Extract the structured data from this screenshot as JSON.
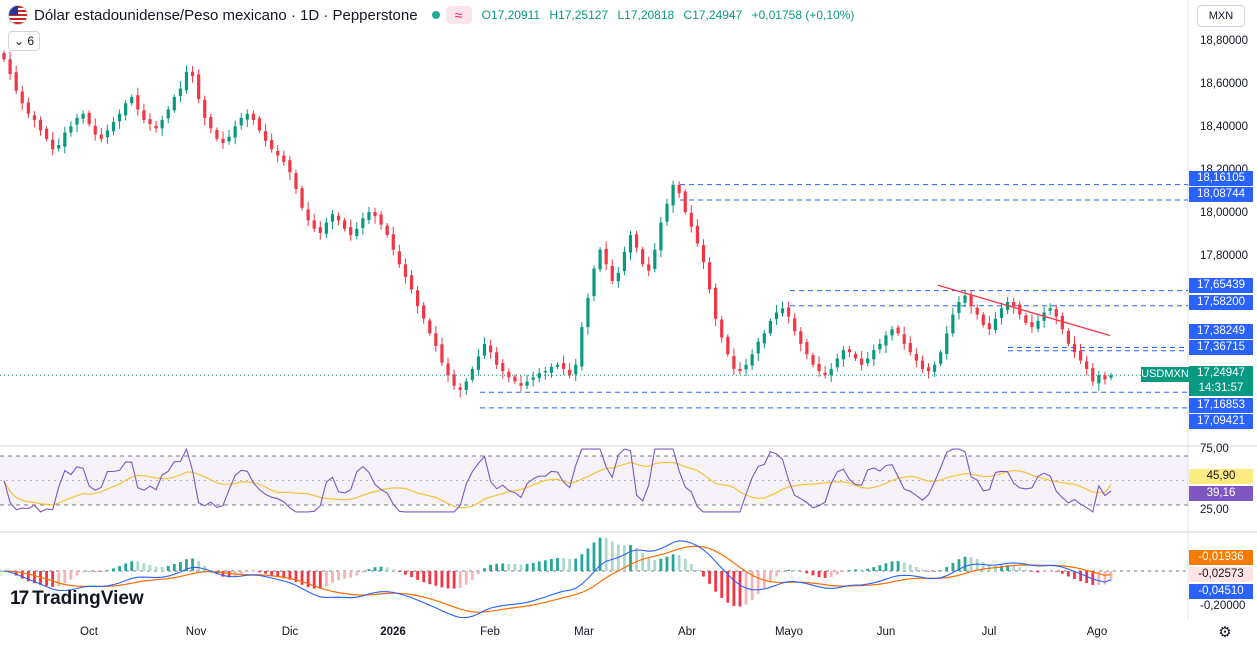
{
  "header": {
    "title": "Dólar estadounidense/Peso mexicano · 1D · Pepperstone",
    "ohlc": {
      "open": "O17,20911",
      "high": "H17,25127",
      "low": "L17,20818",
      "close": "C17,24947",
      "change": "+0,01758 (+0,10%)"
    },
    "indicator_badge": "≈",
    "collapse_label": "6",
    "currency": "MXN"
  },
  "colors": {
    "up": "#089981",
    "down": "#f23645",
    "levels": "#2962ff",
    "trend": "#f23645",
    "rsi": "#7e57c2",
    "rsi_ma": "#f7c33a",
    "macd": "#2962ff",
    "signal": "#ff6d00"
  },
  "icons": [
    "usd-mxn-flag-icon",
    "live-dot-icon",
    "indicator-wave-icon",
    "chevron-down-icon",
    "tradingview-logo-icon",
    "gear-icon"
  ],
  "price_axis": {
    "labels": [
      "18,80000",
      "18,60000",
      "18,40000",
      "18,20000",
      "18,00000",
      "17,80000"
    ]
  },
  "rsi_axis": {
    "labels": [
      "75,00",
      "25,00"
    ]
  },
  "macd_axis": {
    "labels": [
      "-0,20000"
    ]
  },
  "level_tags": [
    {
      "label": "18,16105",
      "value": 18.16105,
      "style": "blue"
    },
    {
      "label": "18,08744",
      "value": 18.08744,
      "style": "blue"
    },
    {
      "label": "17,65439",
      "value": 17.65439,
      "style": "blue"
    },
    {
      "label": "17,58200",
      "value": 17.582,
      "style": "blue"
    },
    {
      "label": "17,38249",
      "value": 17.38249,
      "style": "blue"
    },
    {
      "label": "17,36715",
      "value": 17.36715,
      "style": "blue"
    },
    {
      "label": "17,16853",
      "value": 17.16853,
      "style": "blue"
    },
    {
      "label": "17,09421",
      "value": 17.09421,
      "style": "blue"
    }
  ],
  "last_price": {
    "symbol": "USDMXN",
    "price": "17,24947",
    "countdown": "14:31:57"
  },
  "rsi_tags": {
    "ma": "45,90",
    "rsi": "39,16"
  },
  "macd_tags": {
    "signal": "-0,01936",
    "histogram": "-0,02573",
    "macd": "-0,04510"
  },
  "time_axis": {
    "labels": [
      "Oct",
      "Nov",
      "Dic",
      "2026",
      "Feb",
      "Mar",
      "Abr",
      "Mayo",
      "Jun",
      "Jul",
      "Ago"
    ]
  },
  "branding": {
    "logo": "TradingView"
  },
  "chart_data": {
    "type": "candlestick",
    "title": "Dólar estadounidense/Peso mexicano · 1D · Pepperstone",
    "symbol": "USDMXN",
    "interval": "1D",
    "price_range": [
      16.95,
      18.9
    ],
    "levels": [
      18.16105,
      18.08744,
      17.65439,
      17.582,
      17.38249,
      17.36715,
      17.16853,
      17.09421
    ],
    "trendline": {
      "from": {
        "date": "Jun",
        "price": 17.68
      },
      "to": {
        "date": "Ago",
        "price": 17.44
      }
    },
    "closes": [
      18.76,
      18.69,
      18.61,
      18.55,
      18.5,
      18.47,
      18.42,
      18.38,
      18.33,
      18.35,
      18.41,
      18.44,
      18.48,
      18.5,
      18.45,
      18.4,
      18.38,
      18.42,
      18.46,
      18.5,
      18.55,
      18.58,
      18.52,
      18.47,
      18.45,
      18.43,
      18.47,
      18.52,
      18.58,
      18.62,
      18.7,
      18.68,
      18.57,
      18.48,
      18.43,
      18.38,
      18.36,
      18.39,
      18.44,
      18.48,
      18.5,
      18.47,
      18.42,
      18.37,
      18.33,
      18.3,
      18.27,
      18.22,
      18.14,
      18.05,
      17.99,
      17.95,
      17.93,
      17.98,
      18.02,
      17.99,
      17.95,
      17.92,
      17.95,
      18.0,
      18.03,
      18.01,
      17.97,
      17.92,
      17.85,
      17.78,
      17.72,
      17.66,
      17.58,
      17.52,
      17.45,
      17.39,
      17.31,
      17.25,
      17.2,
      17.18,
      17.22,
      17.28,
      17.34,
      17.4,
      17.36,
      17.3,
      17.27,
      17.24,
      17.22,
      17.2,
      17.22,
      17.24,
      17.26,
      17.27,
      17.29,
      17.3,
      17.28,
      17.25,
      17.3,
      17.48,
      17.62,
      17.76,
      17.85,
      17.78,
      17.7,
      17.74,
      17.84,
      17.92,
      17.86,
      17.78,
      17.75,
      17.85,
      17.98,
      18.07,
      18.16,
      18.12,
      18.03,
      17.96,
      17.88,
      17.79,
      17.66,
      17.52,
      17.43,
      17.35,
      17.28,
      17.27,
      17.3,
      17.35,
      17.41,
      17.45,
      17.51,
      17.55,
      17.57,
      17.53,
      17.46,
      17.4,
      17.35,
      17.3,
      17.27,
      17.25,
      17.28,
      17.33,
      17.37,
      17.36,
      17.33,
      17.3,
      17.33,
      17.37,
      17.4,
      17.44,
      17.47,
      17.45,
      17.4,
      17.36,
      17.32,
      17.28,
      17.27,
      17.3,
      17.36,
      17.45,
      17.54,
      17.6,
      17.63,
      17.58,
      17.54,
      17.49,
      17.47,
      17.52,
      17.57,
      17.6,
      17.58,
      17.54,
      17.5,
      17.48,
      17.51,
      17.55,
      17.57,
      17.53,
      17.47,
      17.4,
      17.36,
      17.32,
      17.28,
      17.22,
      17.25,
      17.23,
      17.25
    ],
    "rsi_range": [
      0,
      100
    ],
    "rsi_last": 39.16,
    "rsi_ma_last": 45.9,
    "macd_last": -0.0451,
    "signal_last": -0.01936,
    "histogram_last": -0.02573
  }
}
